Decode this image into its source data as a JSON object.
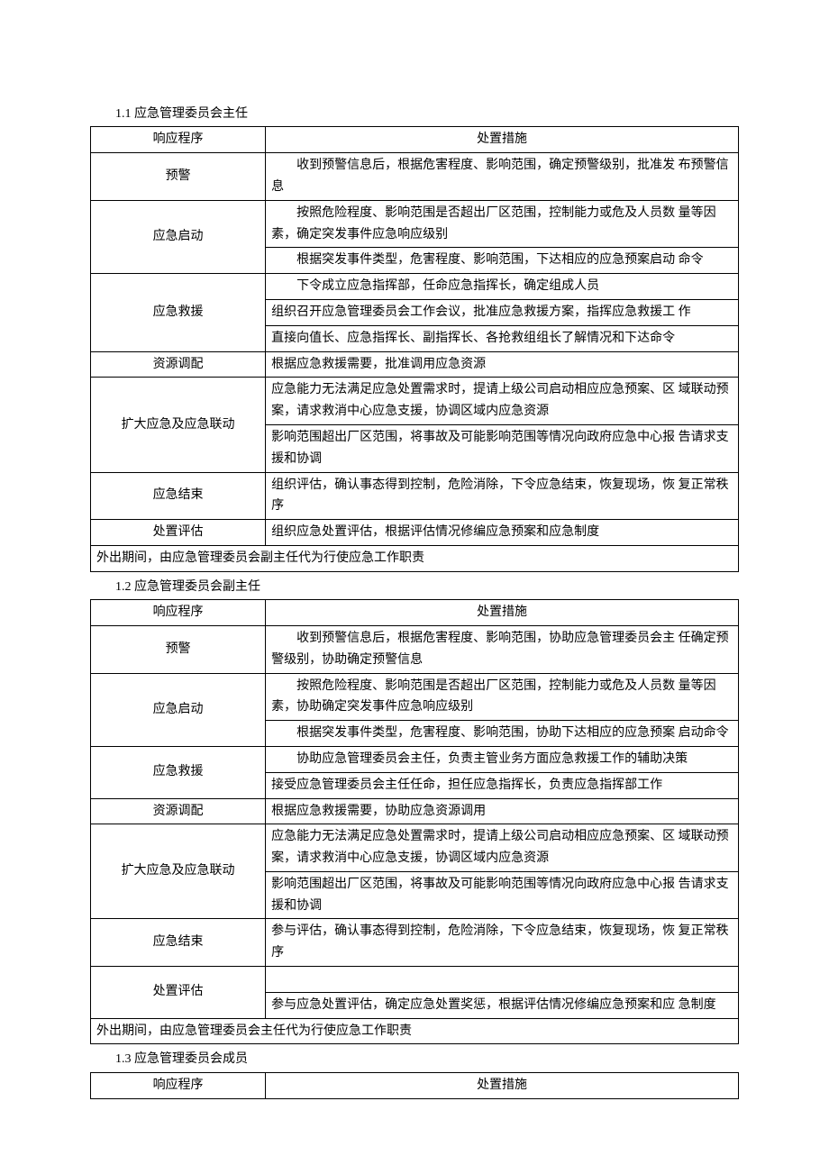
{
  "section1": {
    "title": "1.1 应急管理委员会主任",
    "header_left": "响应程序",
    "header_right": "处置措施",
    "rows": [
      {
        "left": "预警",
        "rights": [
          "收到预警信息后，根据危害程度、影响范围，确定预警级别，批准发 布预警信息"
        ]
      },
      {
        "left": "应急启动",
        "rights": [
          "按照危险程度、影响范围是否超出厂区范围，控制能力或危及人员数 量等因素，确定突发事件应急响应级别",
          "根据突发事件类型，危害程度、影响范围，下达相应的应急预案启动 命令"
        ]
      },
      {
        "left": "应急救援",
        "rights": [
          "下令成立应急指挥部，任命应急指挥长，确定组成人员",
          "组织召开应急管理委员会工作会议，批准应急救援方案，指挥应急救援工 作",
          "直接向值长、应急指挥长、副指挥长、各抢救组组长了解情况和下达命令"
        ]
      },
      {
        "left": "资源调配",
        "rights": [
          "根据应急救援需要，批准调用应急资源"
        ]
      },
      {
        "left": "扩大应急及应急联动",
        "rights": [
          "应急能力无法满足应急处置需求时，提请上级公司启动相应应急预案、区 域联动预案，请求救消中心应急支援，协调区域内应急资源",
          "影响范围超出厂区范围，将事故及可能影响范围等情况向政府应急中心报 告请求支援和协调"
        ]
      },
      {
        "left": "应急结束",
        "rights": [
          "组织评估，确认事态得到控制，危险消除，下令应急结束，恢复现场，恢 复正常秩序"
        ]
      },
      {
        "left": "处置评估",
        "rights": [
          "组织应急处置评估，根据评估情况修编应急预案和应急制度"
        ]
      }
    ],
    "note": "外出期间，由应急管理委员会副主任代为行使应急工作职责"
  },
  "section2": {
    "title": "1.2 应急管理委员会副主任",
    "header_left": "响应程序",
    "header_right": "处置措施",
    "rows": [
      {
        "left": "预警",
        "rights": [
          "收到预警信息后，根据危害程度、影响范围，协助应急管理委员会主 任确定预警级别，协助确定预警信息"
        ]
      },
      {
        "left": "应急启动",
        "rights": [
          "按照危险程度、影响范围是否超出厂区范围，控制能力或危及人员数 量等因素，协助确定突发事件应急响应级别",
          "根据突发事件类型，危害程度、影响范围，协助下达相应的应急预案 启动命令"
        ]
      },
      {
        "left": "应急救援",
        "rights": [
          "协助应急管理委员会主任，负责主管业务方面应急救援工作的辅助决策",
          "接受应急管理委员会主任任命，担任应急指挥长，负责应急指挥部工作"
        ]
      },
      {
        "left": "资源调配",
        "rights": [
          "根据应急救援需要，协助应急资源调用"
        ]
      },
      {
        "left": "扩大应急及应急联动",
        "rights": [
          "应急能力无法满足应急处置需求时，提请上级公司启动相应应急预案、区 域联动预案，请求救消中心应急支援，协调区域内应急资源",
          "影响范围超出厂区范围，将事故及可能影响范围等情况向政府应急中心报 告请求支援和协调"
        ]
      },
      {
        "left": "应急结束",
        "rights": [
          "参与评估，确认事态得到控制，危险消除，下令应急结束，恢复现场，恢 复正常秩序"
        ]
      },
      {
        "left": "处置评估",
        "rights": [
          "参与应急处置评估，确定应急处置奖惩，根据评估情况修编应急预案和应 急制度"
        ],
        "has_blank_row": true
      }
    ],
    "note": "外出期间，由应急管理委员会主任代为行使应急工作职责"
  },
  "section3": {
    "title": "1.3 应急管理委员会成员",
    "header_left": "响应程序",
    "header_right": "处置措施"
  }
}
